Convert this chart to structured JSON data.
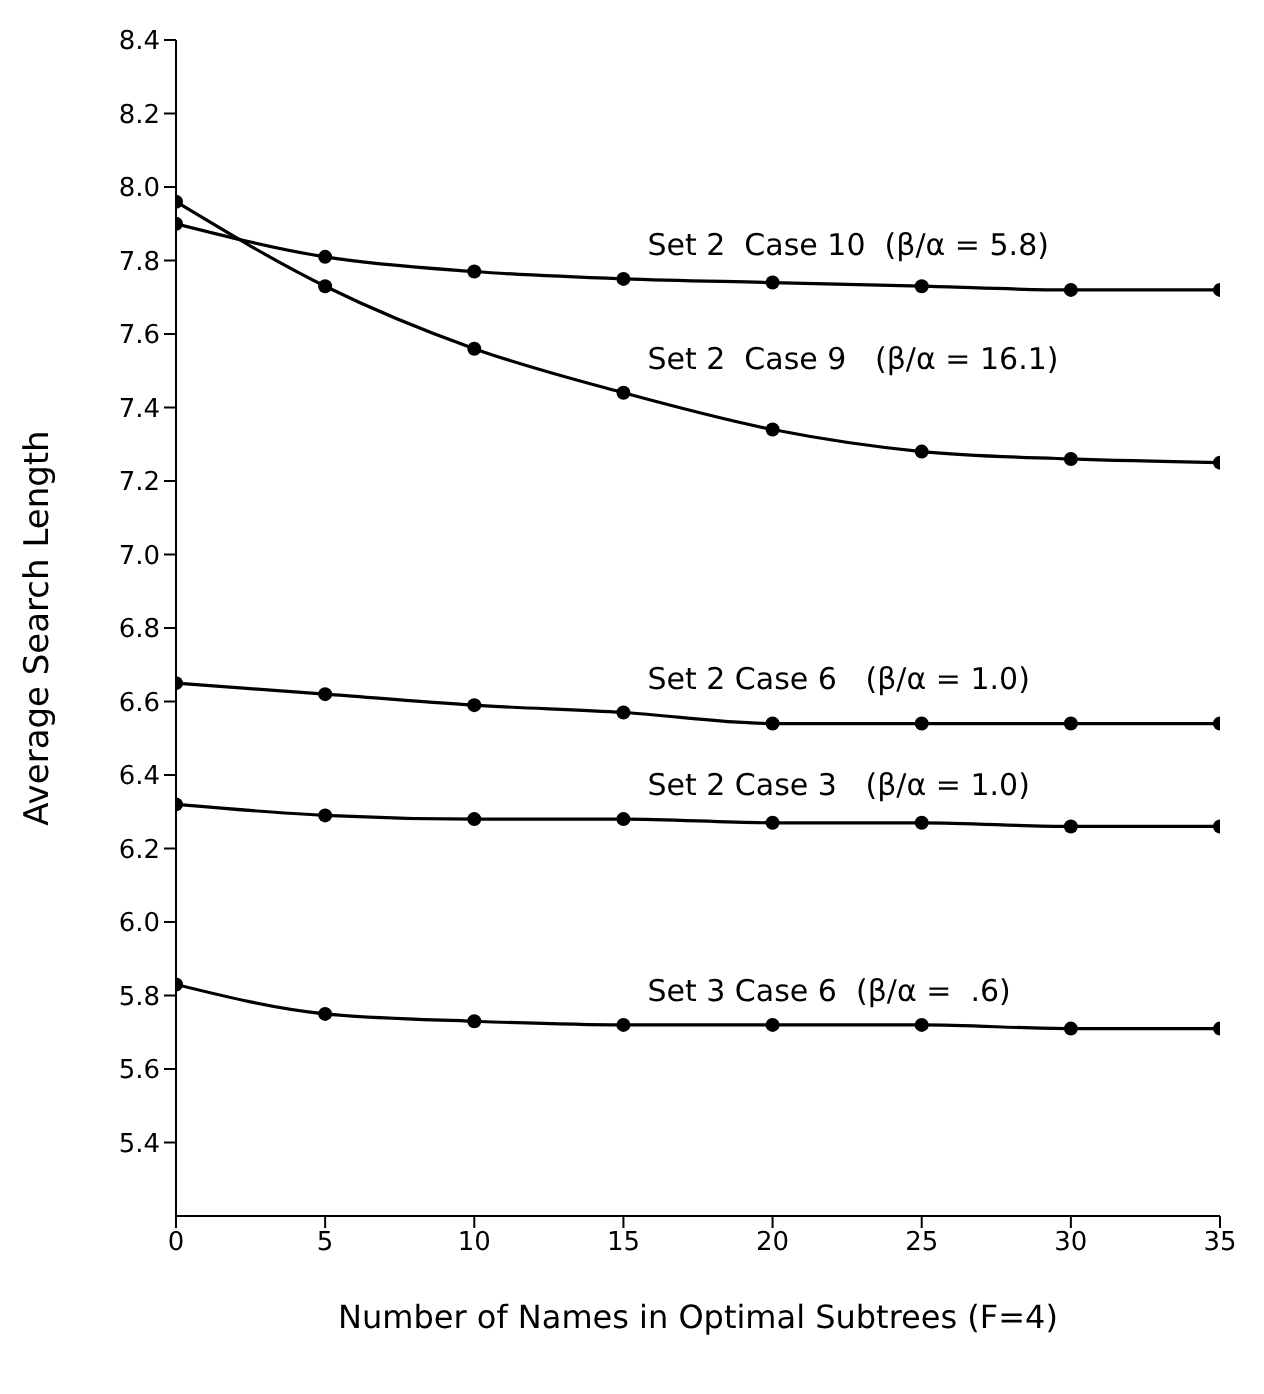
{
  "chart_data": {
    "type": "line",
    "xlabel": "Number of Names in Optimal Subtrees      (F=4)",
    "ylabel": "Average   Search   Length",
    "x": [
      0,
      5,
      10,
      15,
      20,
      25,
      30,
      35
    ],
    "series": [
      {
        "name": "Set 2  Case 10  (β/α = 5.8)",
        "color": "#000000",
        "values": [
          7.9,
          7.81,
          7.77,
          7.75,
          7.74,
          7.73,
          7.72,
          7.72
        ]
      },
      {
        "name": "Set 2  Case 9   (β/α = 16.1)",
        "color": "#000000",
        "values": [
          7.96,
          7.73,
          7.56,
          7.44,
          7.34,
          7.28,
          7.26,
          7.25
        ]
      },
      {
        "name": "Set 2 Case 6   (β/α = 1.0)",
        "color": "#000000",
        "values": [
          6.65,
          6.62,
          6.59,
          6.57,
          6.54,
          6.54,
          6.54,
          6.54
        ]
      },
      {
        "name": "Set 2 Case 3   (β/α = 1.0)",
        "color": "#000000",
        "values": [
          6.32,
          6.29,
          6.28,
          6.28,
          6.27,
          6.27,
          6.26,
          6.26
        ]
      },
      {
        "name": "Set 3 Case 6  (β/α =  .6)",
        "color": "#000000",
        "values": [
          5.83,
          5.75,
          5.73,
          5.72,
          5.72,
          5.72,
          5.71,
          5.71
        ]
      }
    ],
    "xlim": [
      0,
      35
    ],
    "xticks": [
      0,
      5,
      10,
      15,
      20,
      25,
      30,
      35
    ],
    "ylim": [
      5.2,
      8.4
    ],
    "yticks": [
      5.4,
      5.6,
      5.8,
      {
        "value": 6,
        "label": "6.0"
      },
      6.2,
      6.4,
      6.6,
      6.8,
      {
        "value": 7,
        "label": "7.0"
      },
      7.2,
      7.4,
      7.6,
      7.8,
      {
        "value": 8,
        "label": "8.0"
      },
      8.2,
      8.4
    ],
    "marker": "circle",
    "line_style": "solid",
    "grid": false,
    "legend": false
  }
}
